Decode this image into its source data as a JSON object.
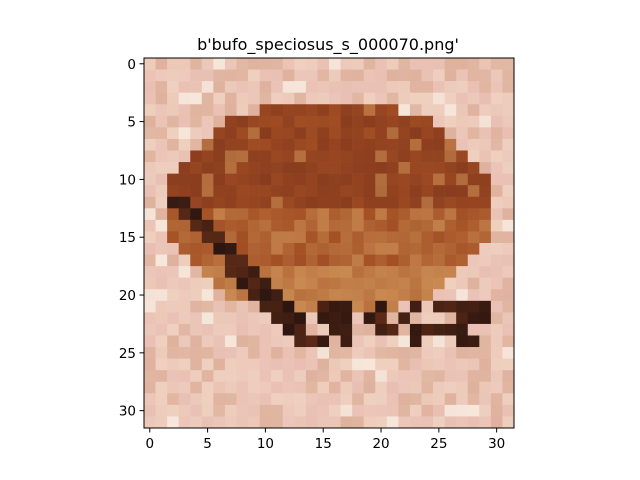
{
  "figure": {
    "title": "b'bufo_speciosus_s_000070.png'"
  },
  "image": {
    "subject": "pixelated toad on sandy ground",
    "pixel_grid": [
      32,
      32
    ],
    "palette": {
      "sand_light": "#efd0bf",
      "sand_pink": "#e9bfb3",
      "sand_mid": "#d8a890",
      "toad_dark": "#8a3d1e",
      "toad_mid": "#a24e24",
      "toad_light": "#b8703d",
      "toad_tan": "#c98a52",
      "shadow": "#2c1610"
    }
  },
  "axes": {
    "x_ticks": [
      "0",
      "5",
      "10",
      "15",
      "20",
      "25",
      "30"
    ],
    "y_ticks": [
      "0",
      "5",
      "10",
      "15",
      "20",
      "25",
      "30"
    ],
    "x_range": [
      -0.5,
      31.5
    ],
    "y_range": [
      -0.5,
      31.5
    ],
    "y_inverted": true
  }
}
